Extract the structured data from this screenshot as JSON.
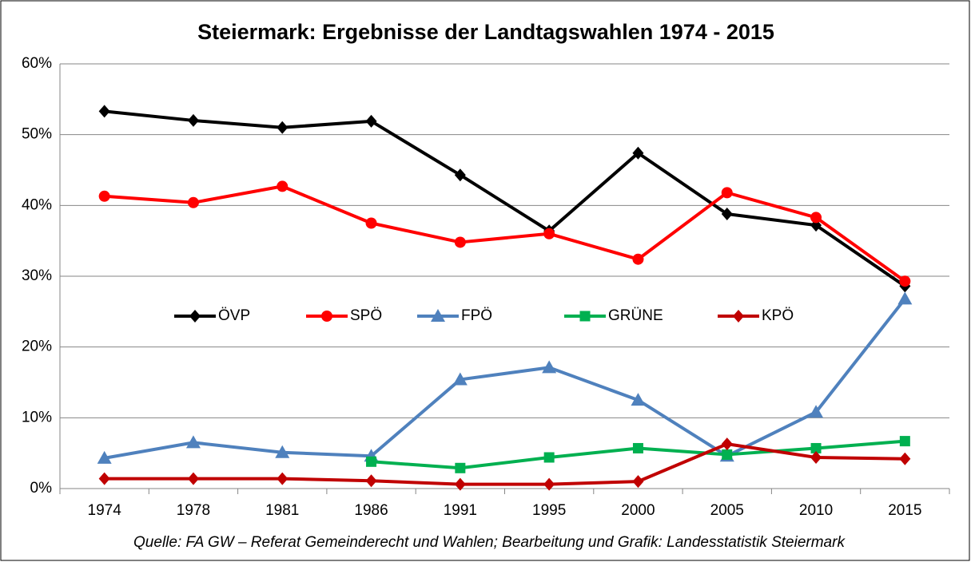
{
  "chart_data": {
    "type": "line",
    "title": "Steiermark: Ergebnisse der Landtagswahlen 1974 - 2015",
    "source": "Quelle: FA GW – Referat Gemeinderecht und Wahlen; Bearbeitung und Grafik: Landesstatistik Steiermark",
    "categories": [
      "1974",
      "1978",
      "1981",
      "1986",
      "1991",
      "1995",
      "2000",
      "2005",
      "2010",
      "2015"
    ],
    "series": [
      {
        "name": "ÖVP",
        "color": "#000000",
        "marker": "diamond",
        "values": [
          53.3,
          52.0,
          51.0,
          51.9,
          44.3,
          36.4,
          47.4,
          38.8,
          37.2,
          28.6
        ]
      },
      {
        "name": "SPÖ",
        "color": "#ff0000",
        "marker": "circle",
        "values": [
          41.3,
          40.4,
          42.7,
          37.5,
          34.8,
          36.0,
          32.4,
          41.8,
          38.3,
          29.3
        ]
      },
      {
        "name": "FPÖ",
        "color": "#4f81bd",
        "marker": "triangle",
        "values": [
          4.3,
          6.5,
          5.1,
          4.6,
          15.4,
          17.1,
          12.5,
          4.6,
          10.8,
          26.8
        ]
      },
      {
        "name": "GRÜNE",
        "color": "#00b050",
        "marker": "square",
        "values": [
          null,
          null,
          null,
          3.8,
          2.9,
          4.4,
          5.7,
          4.8,
          5.7,
          6.7
        ]
      },
      {
        "name": "KPÖ",
        "color": "#c00000",
        "marker": "diamond",
        "values": [
          1.4,
          1.4,
          1.4,
          1.1,
          0.6,
          0.6,
          1.0,
          6.3,
          4.4,
          4.2
        ]
      }
    ],
    "ylim": [
      0,
      60
    ],
    "yticks": [
      {
        "value": 0,
        "label": "0%"
      },
      {
        "value": 10,
        "label": "10%"
      },
      {
        "value": 20,
        "label": "20%"
      },
      {
        "value": 30,
        "label": "30%"
      },
      {
        "value": 40,
        "label": "40%"
      },
      {
        "value": 50,
        "label": "50%"
      },
      {
        "value": 60,
        "label": "60%"
      }
    ],
    "grid": true
  }
}
